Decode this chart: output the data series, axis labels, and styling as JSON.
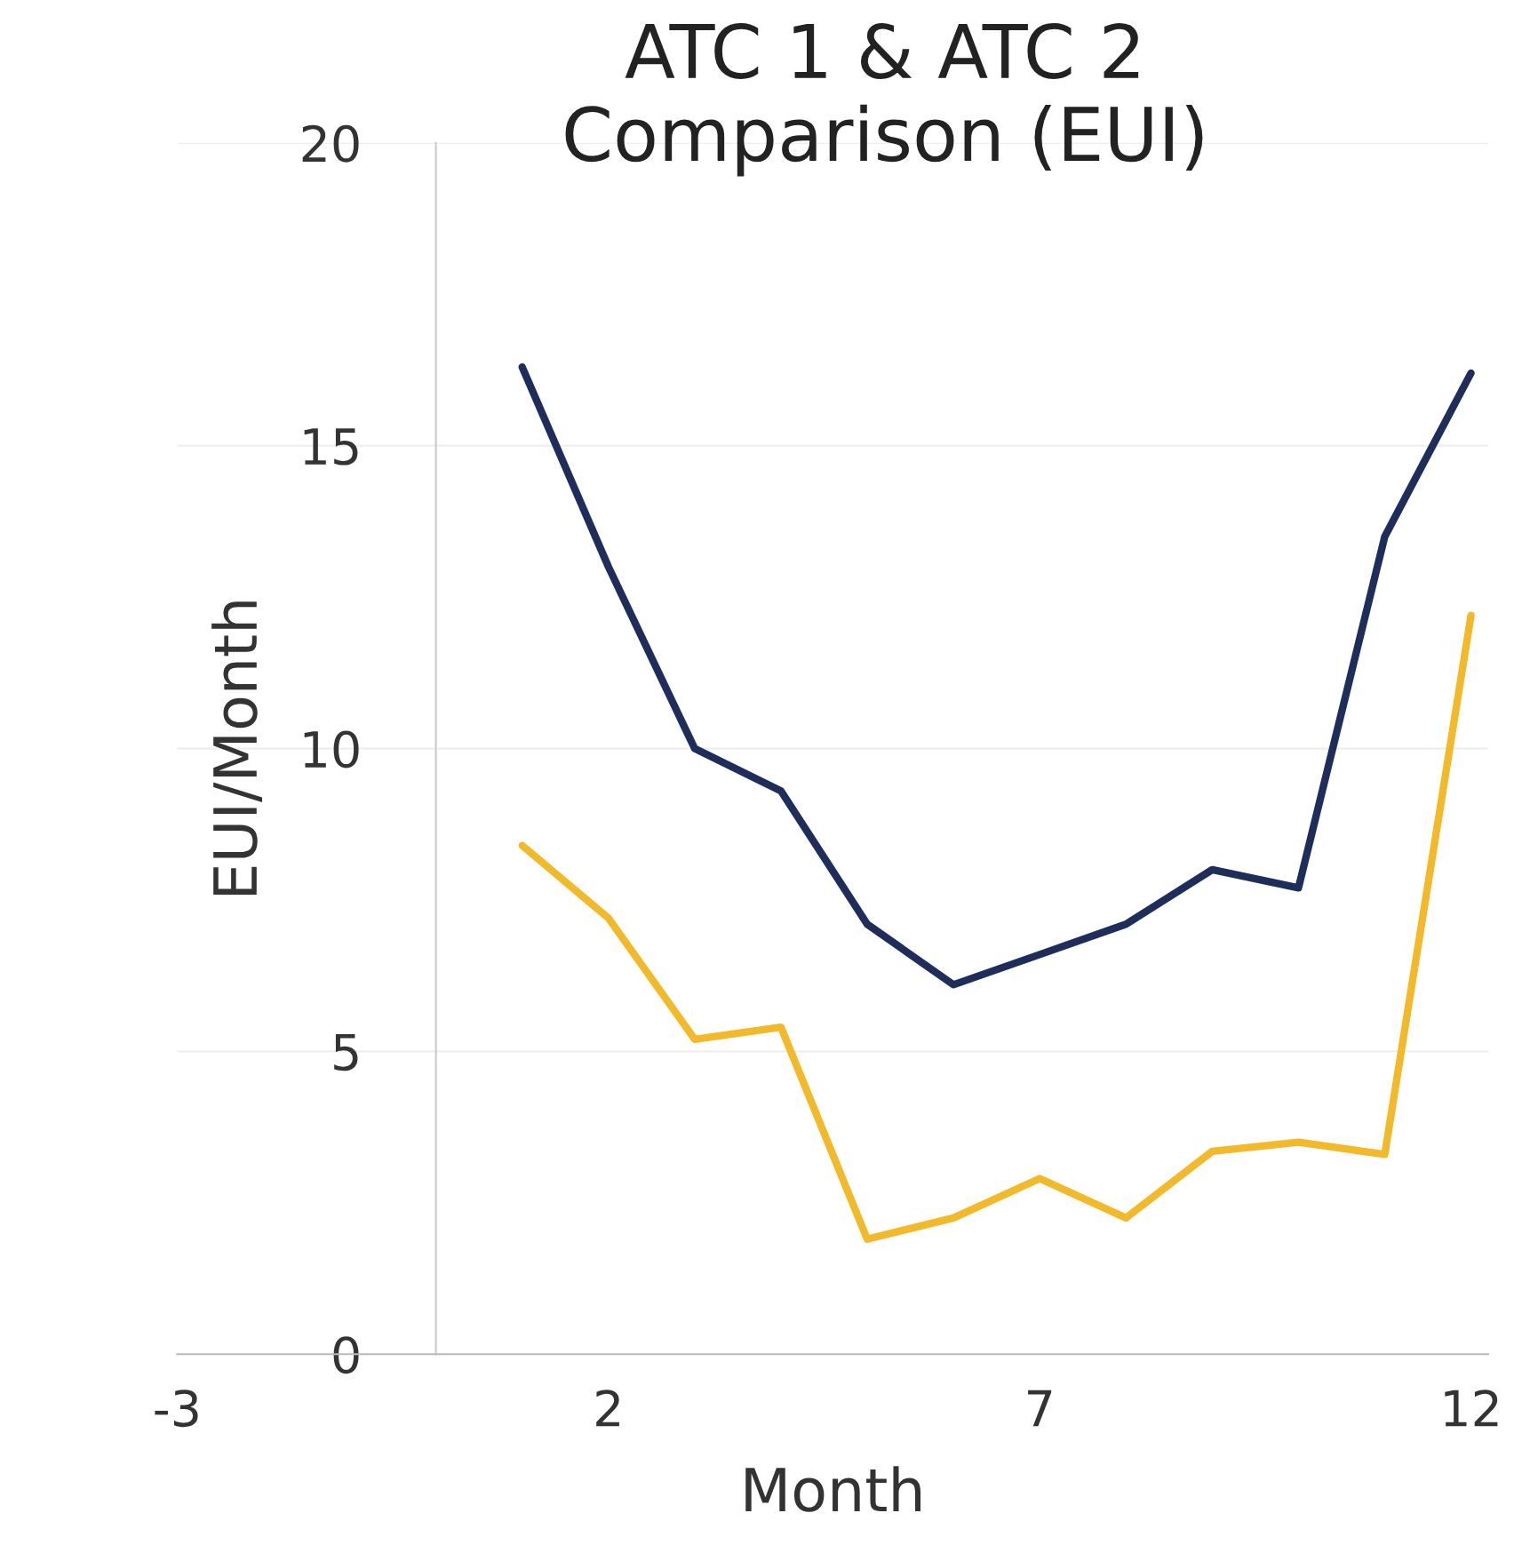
{
  "chart_data": {
    "type": "line",
    "title": "ATC 1 & ATC 2\nComparison (EUI)",
    "xlabel": "Month",
    "ylabel": "EUI/Month",
    "x": [
      1,
      2,
      3,
      4,
      5,
      6,
      7,
      8,
      9,
      10,
      11,
      12
    ],
    "series": [
      {
        "color": "#1f2d5a",
        "values": [
          16.3,
          13.0,
          10.0,
          9.3,
          7.1,
          6.1,
          6.6,
          7.1,
          8.0,
          7.7,
          13.5,
          16.2
        ]
      },
      {
        "color": "#f2b92b",
        "values": [
          8.4,
          7.2,
          5.2,
          5.4,
          1.9,
          2.25,
          2.9,
          2.25,
          3.35,
          3.5,
          3.3,
          12.2
        ]
      }
    ],
    "xlim": [
      -3,
      12.2
    ],
    "xticks": [
      -3,
      2,
      7,
      12
    ],
    "ylim": [
      0,
      20
    ],
    "yticks": [
      0,
      5,
      10,
      15,
      20
    ],
    "grid": "y",
    "legend": false,
    "marker": "none",
    "line_style": "solid"
  }
}
